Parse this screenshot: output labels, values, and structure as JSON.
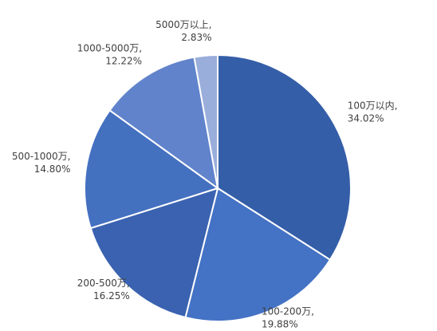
{
  "chart_data": {
    "type": "pie",
    "categories": [
      "100万以内,",
      "100-200万,",
      "200-500万,",
      "500-1000万,",
      "1000-5000万,",
      "5000万以上,"
    ],
    "values": [
      34.02,
      19.88,
      16.25,
      14.8,
      12.22,
      2.83
    ],
    "value_labels": [
      "34.02%",
      "19.88%",
      "16.25%",
      "14.80%",
      "12.22%",
      "2.83%"
    ],
    "colors": [
      "#355ea8",
      "#4472c4",
      "#3a62b0",
      "#4470c0",
      "#6183cc",
      "#9aaedc"
    ]
  }
}
